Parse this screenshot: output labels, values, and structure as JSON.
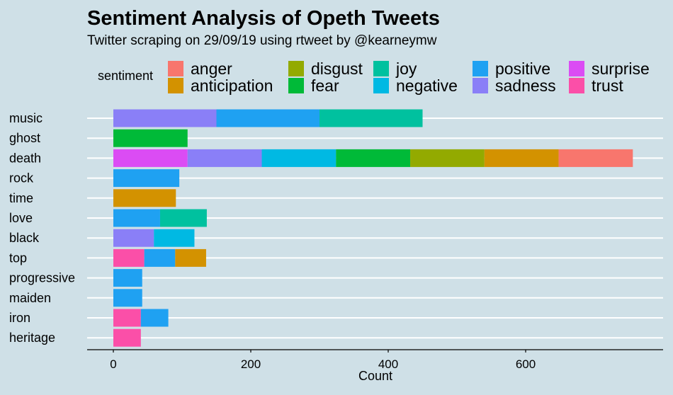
{
  "chart_data": {
    "type": "bar",
    "orientation": "horizontal",
    "stacked": true,
    "title": "Sentiment Analysis of Opeth Tweets",
    "subtitle": "Twitter scraping on 29/09/19 using rtweet by @kearneymw",
    "xlabel": "Count",
    "ylabel": "",
    "xlim": [
      0,
      780
    ],
    "x_ticks": [
      0,
      200,
      400,
      600
    ],
    "grid": true,
    "legend": {
      "title": "sentiment",
      "position": "top",
      "entries": [
        {
          "name": "anger",
          "color": "#F8766D"
        },
        {
          "name": "anticipation",
          "color": "#D39200"
        },
        {
          "name": "disgust",
          "color": "#93AA00"
        },
        {
          "name": "fear",
          "color": "#00BA38"
        },
        {
          "name": "joy",
          "color": "#00C19F"
        },
        {
          "name": "negative",
          "color": "#00B9E3"
        },
        {
          "name": "positive",
          "color": "#619CFF"
        },
        {
          "name": "sadness",
          "color": "#DB72FB"
        },
        {
          "name": "surprise",
          "color": "#FF61C3"
        },
        {
          "name": "trust",
          "color": "#FF6C91"
        }
      ]
    },
    "categories": [
      "music",
      "ghost",
      "death",
      "rock",
      "time",
      "love",
      "black",
      "top",
      "progressive",
      "maiden",
      "iron",
      "heritage"
    ],
    "bars": [
      {
        "word": "music",
        "segments": [
          {
            "sentiment": "sadness",
            "value": 150
          },
          {
            "sentiment": "positive",
            "value": 150
          },
          {
            "sentiment": "joy",
            "value": 150
          }
        ]
      },
      {
        "word": "ghost",
        "segments": [
          {
            "sentiment": "fear",
            "value": 108
          }
        ]
      },
      {
        "word": "death",
        "segments": [
          {
            "sentiment": "surprise",
            "value": 108
          },
          {
            "sentiment": "sadness",
            "value": 108
          },
          {
            "sentiment": "negative",
            "value": 108
          },
          {
            "sentiment": "fear",
            "value": 108
          },
          {
            "sentiment": "disgust",
            "value": 108
          },
          {
            "sentiment": "anticipation",
            "value": 108
          },
          {
            "sentiment": "anger",
            "value": 108
          }
        ]
      },
      {
        "word": "rock",
        "segments": [
          {
            "sentiment": "positive",
            "value": 96
          }
        ]
      },
      {
        "word": "time",
        "segments": [
          {
            "sentiment": "anticipation",
            "value": 91
          }
        ]
      },
      {
        "word": "love",
        "segments": [
          {
            "sentiment": "positive",
            "value": 68
          },
          {
            "sentiment": "joy",
            "value": 68
          }
        ]
      },
      {
        "word": "black",
        "segments": [
          {
            "sentiment": "sadness",
            "value": 59
          },
          {
            "sentiment": "negative",
            "value": 59
          }
        ]
      },
      {
        "word": "top",
        "segments": [
          {
            "sentiment": "trust",
            "value": 45
          },
          {
            "sentiment": "positive",
            "value": 45
          },
          {
            "sentiment": "anticipation",
            "value": 45
          }
        ]
      },
      {
        "word": "progressive",
        "segments": [
          {
            "sentiment": "positive",
            "value": 42
          }
        ]
      },
      {
        "word": "maiden",
        "segments": [
          {
            "sentiment": "positive",
            "value": 42
          }
        ]
      },
      {
        "word": "iron",
        "segments": [
          {
            "sentiment": "trust",
            "value": 40
          },
          {
            "sentiment": "positive",
            "value": 40
          }
        ]
      },
      {
        "word": "heritage",
        "segments": [
          {
            "sentiment": "trust",
            "value": 40
          }
        ]
      }
    ]
  },
  "colors": {
    "background": "#cfe0e7",
    "gridline": "#ffffff",
    "axis": "#000000",
    "anger": "#F8766D",
    "anticipation": "#D39200",
    "disgust": "#93AA00",
    "fear": "#00BA38",
    "joy": "#00C19F",
    "negative": "#00B9E3",
    "positive": "#1FA1F2",
    "sadness": "#8A7FF7",
    "surprise": "#DB4CF4",
    "trust": "#FB4FA8"
  }
}
